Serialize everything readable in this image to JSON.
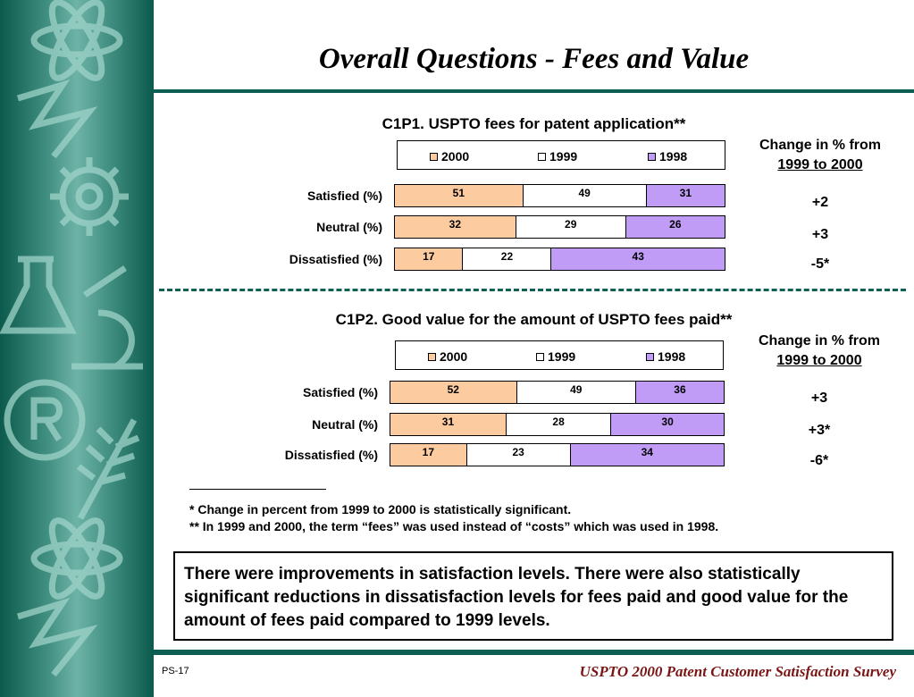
{
  "title": "Overall Questions - Fees and Value",
  "colors": {
    "y2000": "#fcccA0",
    "y1999": "#ffffff",
    "y1998": "#c09cf6",
    "rule": "#0c5f52",
    "footer": "#7a1515"
  },
  "legend": [
    "2000",
    "1999",
    "1998"
  ],
  "change_header": {
    "line1": "Change in % from",
    "line2": "1999 to 2000"
  },
  "chart_data": [
    {
      "type": "bar",
      "stacked": true,
      "orientation": "horizontal",
      "title": "C1P1.  USPTO fees for patent application**",
      "categories": [
        "Satisfied (%)",
        "Neutral (%)",
        "Dissatisfied (%)"
      ],
      "series": [
        {
          "name": "2000",
          "values": [
            51,
            32,
            17
          ]
        },
        {
          "name": "1999",
          "values": [
            49,
            29,
            22
          ]
        },
        {
          "name": "1998",
          "values": [
            31,
            26,
            43
          ]
        }
      ],
      "changes": [
        "+2",
        "+3",
        "-5*"
      ]
    },
    {
      "type": "bar",
      "stacked": true,
      "orientation": "horizontal",
      "title": "C1P2.  Good value for the amount of USPTO fees paid**",
      "categories": [
        "Satisfied (%)",
        "Neutral (%)",
        "Dissatisfied (%)"
      ],
      "series": [
        {
          "name": "2000",
          "values": [
            52,
            31,
            17
          ]
        },
        {
          "name": "1999",
          "values": [
            49,
            28,
            23
          ]
        },
        {
          "name": "1998",
          "values": [
            36,
            30,
            34
          ]
        }
      ],
      "changes": [
        "+3",
        "+3*",
        "-6*"
      ]
    }
  ],
  "footnotes": [
    "* Change in percent from 1999 to 2000 is statistically significant.",
    "** In 1999 and 2000, the term “fees” was used instead of “costs” which was used in 1998."
  ],
  "summary": "There were improvements in satisfaction levels.  There were also statistically significant reductions in dissatisfaction levels for fees paid and good value for the amount of fees paid compared to 1999 levels.",
  "page_number": "PS-17",
  "footer": "USPTO 2000 Patent Customer Satisfaction Survey"
}
